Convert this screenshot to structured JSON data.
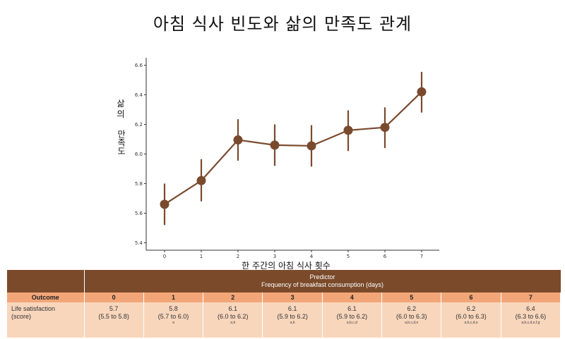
{
  "chart_data": {
    "type": "line",
    "title": "아침 식사 빈도와 삶의 만족도 관계",
    "xlabel": "한 주간의 아침 식사 횟수",
    "ylabel": [
      "삶의",
      "만족도"
    ],
    "x": [
      0,
      1,
      2,
      3,
      4,
      5,
      6,
      7
    ],
    "y": [
      5.66,
      5.82,
      6.095,
      6.06,
      6.055,
      6.16,
      6.18,
      6.42
    ],
    "ci_low": [
      5.52,
      5.68,
      5.955,
      5.92,
      5.915,
      6.02,
      6.04,
      6.28
    ],
    "ci_high": [
      5.8,
      5.965,
      6.235,
      6.2,
      6.195,
      6.295,
      6.315,
      6.555
    ],
    "xticks": [
      "0",
      "1",
      "2",
      "3",
      "4",
      "5",
      "6",
      "7"
    ],
    "yticks": [
      "5.4",
      "5.6",
      "5.8",
      "6.0",
      "6.2",
      "6.4",
      "6.6"
    ],
    "ylim": [
      5.35,
      6.65
    ],
    "grid": false,
    "color": "#7a4a2e"
  },
  "table": {
    "predictor_title": "Predictor",
    "predictor_sub": "Frequency of breakfast consumption (days)",
    "outcome_header": "Outcome",
    "columns": [
      "0",
      "1",
      "2",
      "3",
      "4",
      "5",
      "6",
      "7"
    ],
    "row_label": "Life satisfaction",
    "row_label2": "(score)",
    "cells": [
      {
        "mean": "5.7",
        "ci": "(5.5 to 5.8)",
        "letters": ""
      },
      {
        "mean": "5.8",
        "ci": "(5.7 to 6.0)",
        "letters": "a"
      },
      {
        "mean": "6.1",
        "ci": "(6.0 to 6.2)",
        "letters": "a,b"
      },
      {
        "mean": "6.1",
        "ci": "(5.9 to 6.2)",
        "letters": "a,b"
      },
      {
        "mean": "6.1",
        "ci": "(5.9 to 6.2)",
        "letters": "a,b,c,d"
      },
      {
        "mean": "6.2",
        "ci": "(6.0 to 6.3)",
        "letters": "a,b,c,d,e"
      },
      {
        "mean": "6.2",
        "ci": "(6.0 to 6.3)",
        "letters": "a,b,c,d,e"
      },
      {
        "mean": "6.4",
        "ci": "(6.3 to 6.6)",
        "letters": "a,b,c,d,e,f,g"
      }
    ]
  }
}
